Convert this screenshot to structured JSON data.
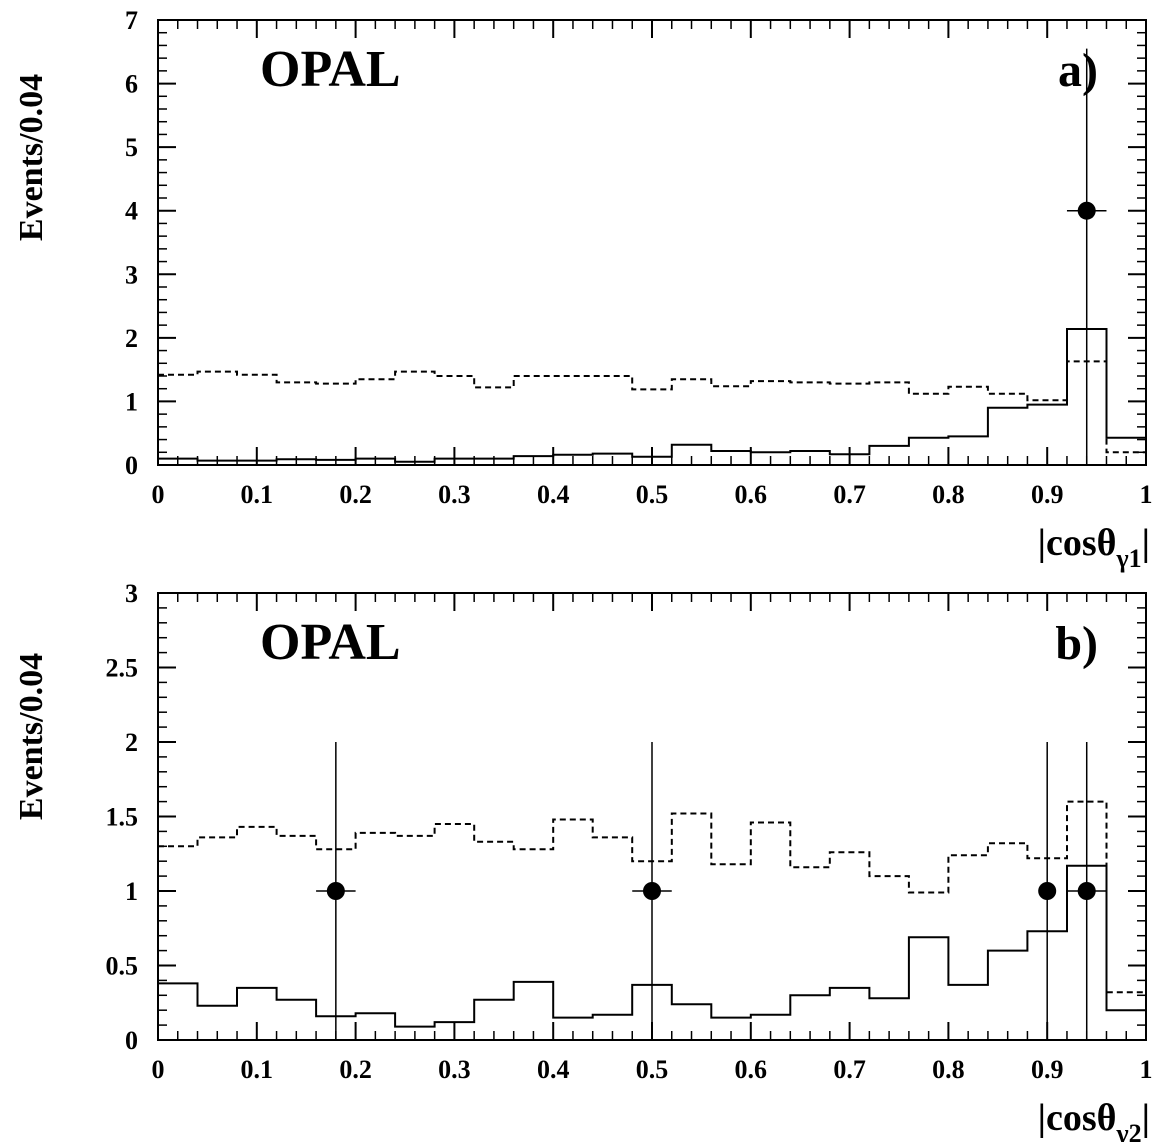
{
  "chart_data": [
    {
      "type": "histogram",
      "experiment_label": "OPAL",
      "panel_label": "a)",
      "xlabel": "|cosθ",
      "xlabel_sub": "γ1",
      "xlabel_end": "|",
      "ylabel": "Events/0.04",
      "xlim": [
        0,
        1
      ],
      "ylim": [
        0,
        7
      ],
      "x_ticks": [
        "0",
        "0.1",
        "0.2",
        "0.3",
        "0.4",
        "0.5",
        "0.6",
        "0.7",
        "0.8",
        "0.9",
        "1"
      ],
      "y_ticks": [
        "0",
        "1",
        "2",
        "3",
        "4",
        "5",
        "6",
        "7"
      ],
      "y_tick_values": [
        0,
        1,
        2,
        3,
        4,
        5,
        6,
        7
      ],
      "bin_edges": [
        0,
        0.04,
        0.08,
        0.12,
        0.16,
        0.2,
        0.24,
        0.28,
        0.32,
        0.36,
        0.4,
        0.44,
        0.48,
        0.52,
        0.56,
        0.6,
        0.64,
        0.68,
        0.72,
        0.76,
        0.8,
        0.84,
        0.88,
        0.92,
        0.96,
        1.0
      ],
      "series": [
        {
          "style": "solid",
          "values": [
            0.1,
            0.07,
            0.07,
            0.09,
            0.08,
            0.1,
            0.05,
            0.1,
            0.1,
            0.14,
            0.16,
            0.18,
            0.13,
            0.32,
            0.22,
            0.2,
            0.22,
            0.17,
            0.3,
            0.43,
            0.45,
            0.9,
            0.95,
            2.14,
            0.43
          ]
        },
        {
          "style": "dashed",
          "values": [
            1.42,
            1.47,
            1.42,
            1.3,
            1.28,
            1.35,
            1.47,
            1.4,
            1.22,
            1.4,
            1.4,
            1.4,
            1.19,
            1.35,
            1.24,
            1.32,
            1.3,
            1.28,
            1.3,
            1.12,
            1.23,
            1.12,
            1.02,
            1.63,
            0.2
          ]
        }
      ],
      "data_points": [
        {
          "x": 0.94,
          "y": 4,
          "xerr": 0.02,
          "yerr_low": 4,
          "yerr_high": 2.55
        }
      ]
    },
    {
      "type": "histogram",
      "experiment_label": "OPAL",
      "panel_label": "b)",
      "xlabel": "|cosθ",
      "xlabel_sub": "γ2",
      "xlabel_end": "|",
      "ylabel": "Events/0.04",
      "xlim": [
        0,
        1
      ],
      "ylim": [
        0,
        3
      ],
      "x_ticks": [
        "0",
        "0.1",
        "0.2",
        "0.3",
        "0.4",
        "0.5",
        "0.6",
        "0.7",
        "0.8",
        "0.9",
        "1"
      ],
      "y_ticks": [
        "0",
        "0.5",
        "1",
        "1.5",
        "2",
        "2.5",
        "3"
      ],
      "y_tick_values": [
        0,
        0.5,
        1,
        1.5,
        2,
        2.5,
        3
      ],
      "bin_edges": [
        0,
        0.04,
        0.08,
        0.12,
        0.16,
        0.2,
        0.24,
        0.28,
        0.32,
        0.36,
        0.4,
        0.44,
        0.48,
        0.52,
        0.56,
        0.6,
        0.64,
        0.68,
        0.72,
        0.76,
        0.8,
        0.84,
        0.88,
        0.92,
        0.96,
        1.0
      ],
      "series": [
        {
          "style": "solid",
          "values": [
            0.38,
            0.23,
            0.35,
            0.27,
            0.16,
            0.18,
            0.09,
            0.12,
            0.27,
            0.39,
            0.15,
            0.17,
            0.37,
            0.24,
            0.15,
            0.17,
            0.3,
            0.35,
            0.28,
            0.69,
            0.37,
            0.6,
            0.73,
            1.17,
            0.2
          ]
        },
        {
          "style": "dashed",
          "values": [
            1.3,
            1.36,
            1.43,
            1.37,
            1.28,
            1.39,
            1.37,
            1.45,
            1.33,
            1.28,
            1.48,
            1.36,
            1.2,
            1.52,
            1.18,
            1.46,
            1.16,
            1.26,
            1.1,
            0.99,
            1.24,
            1.32,
            1.22,
            1.6,
            0.32
          ]
        }
      ],
      "data_points": [
        {
          "x": 0.18,
          "y": 1,
          "xerr": 0.02,
          "yerr_low": 1,
          "yerr_high": 1
        },
        {
          "x": 0.5,
          "y": 1,
          "xerr": 0.02,
          "yerr_low": 1,
          "yerr_high": 1
        },
        {
          "x": 0.9,
          "y": 1,
          "xerr": 0.0,
          "yerr_low": 1,
          "yerr_high": 1
        },
        {
          "x": 0.94,
          "y": 1,
          "xerr": 0.02,
          "yerr_low": 1,
          "yerr_high": 1
        }
      ]
    }
  ]
}
